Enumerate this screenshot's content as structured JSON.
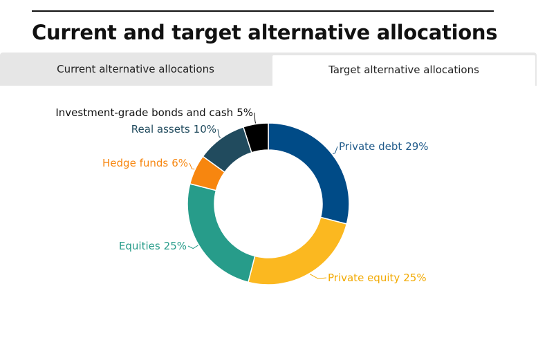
{
  "header": {
    "title": "Current and target alternative allocations"
  },
  "tabs": {
    "labels": [
      "Current alternative allocations",
      "Target alternative allocations"
    ],
    "active": 1
  },
  "chart_data": {
    "type": "donut",
    "categories": [
      "Private debt",
      "Private equity",
      "Equities",
      "Hedge funds",
      "Real assets",
      "Investment-grade bonds and cash"
    ],
    "values": [
      29,
      25,
      25,
      6,
      10,
      5
    ],
    "value_labels": [
      "29%",
      "25%",
      "25%",
      "6%",
      "10%",
      "5%"
    ],
    "colors": [
      "#004b87",
      "#fbb820",
      "#279c8a",
      "#f7860f",
      "#214b5e",
      "#000000"
    ],
    "label_colors": [
      "#1f5a8a",
      "#f2a900",
      "#279c8a",
      "#f7860f",
      "#214b5e",
      "#111111"
    ]
  }
}
